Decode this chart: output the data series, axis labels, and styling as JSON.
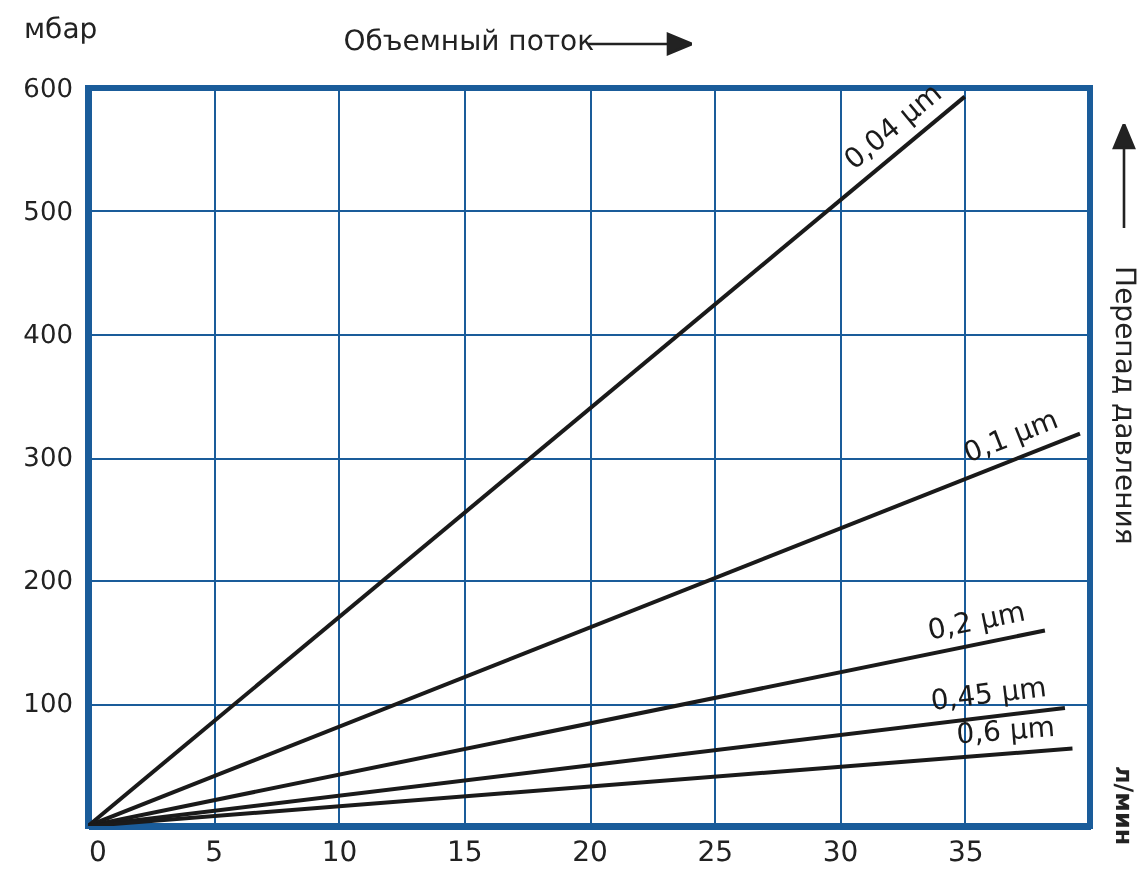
{
  "chart_data": {
    "type": "line",
    "xlabel": "Объемный поток",
    "ylabel": "Перепад давления",
    "annotations": [
      "мбар",
      "л/мин"
    ],
    "xlim": [
      0,
      40
    ],
    "xticks": [
      0,
      5,
      10,
      15,
      20,
      25,
      30,
      35
    ],
    "ylim": [
      0,
      600
    ],
    "yticks": [
      100,
      200,
      300,
      400,
      500,
      600
    ],
    "grid": true,
    "line_style": "solid",
    "series": [
      {
        "name": "0,04 µm",
        "color": "#1a1a1a",
        "x": [
          0,
          35
        ],
        "values": [
          0,
          593
        ]
      },
      {
        "name": "0,1 µm",
        "color": "#1a1a1a",
        "x": [
          0,
          39.6
        ],
        "values": [
          0,
          319
        ]
      },
      {
        "name": "0,2 µm",
        "color": "#1a1a1a",
        "x": [
          0,
          38.2
        ],
        "values": [
          0,
          159
        ]
      },
      {
        "name": "0,45 µm",
        "color": "#1a1a1a",
        "x": [
          0,
          39
        ],
        "values": [
          0,
          96
        ]
      },
      {
        "name": "0,6 µm",
        "color": "#1a1a1a",
        "x": [
          0,
          39.3
        ],
        "values": [
          0,
          63
        ]
      }
    ]
  }
}
